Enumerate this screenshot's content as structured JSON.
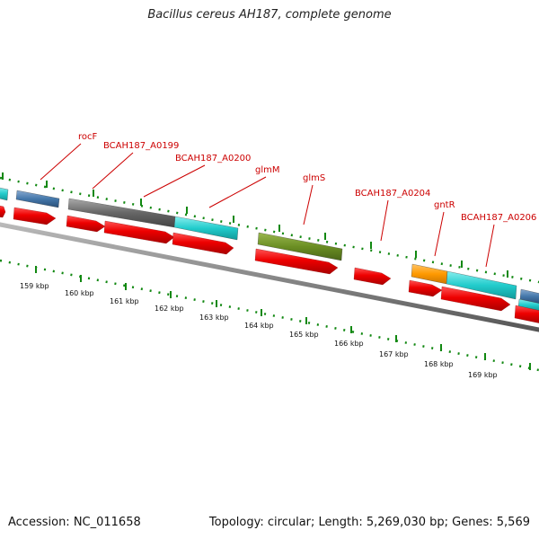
{
  "title": "Bacillus cereus AH187, complete genome",
  "footer": {
    "accession": "Accession: NC_011658",
    "stats": "Topology: circular; Length: 5,269,030 bp; Genes: 5,569"
  },
  "ruler": {
    "unit": "kbp",
    "tick_labels": [
      "159 kbp",
      "160 kbp",
      "161 kbp",
      "162 kbp",
      "163 kbp",
      "164 kbp",
      "165 kbp",
      "166 kbp",
      "167 kbp",
      "168 kbp",
      "169 kbp"
    ]
  },
  "gene_labels": [
    "rocF",
    "BCAH187_A0199",
    "BCAH187_A0200",
    "glmM",
    "glmS",
    "BCAH187_A0204",
    "gntR",
    "BCAH187_A0206"
  ],
  "colors": {
    "cds": "#ee0000",
    "backbone": "#888888",
    "ticks": "#118811",
    "label": "#cc0000",
    "blue": "#4477aa",
    "gray": "#666666",
    "cyan": "#22cccc",
    "olive": "#6b8e23",
    "orange": "#ff9900"
  }
}
